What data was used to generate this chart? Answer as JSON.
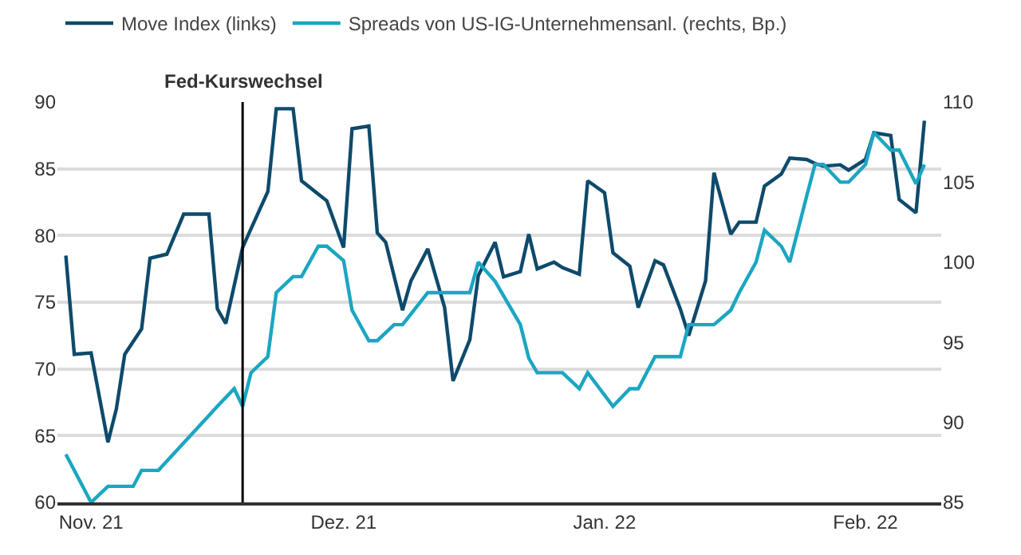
{
  "chart_data": {
    "type": "line",
    "series": [
      {
        "name": "Move Index (links)",
        "color": "#0e4a6b",
        "axis": "y",
        "x": [
          "2021-10-29",
          "2021-10-30",
          "2021-11-01",
          "2021-11-03",
          "2021-11-04",
          "2021-11-05",
          "2021-11-07",
          "2021-11-08",
          "2021-11-10",
          "2021-11-12",
          "2021-11-15",
          "2021-11-16",
          "2021-11-17",
          "2021-11-19",
          "2021-11-20",
          "2021-11-22",
          "2021-11-23",
          "2021-11-25",
          "2021-11-26",
          "2021-11-28",
          "2021-11-29",
          "2021-12-01",
          "2021-12-02",
          "2021-12-04",
          "2021-12-05",
          "2021-12-06",
          "2021-12-08",
          "2021-12-09",
          "2021-12-11",
          "2021-12-13",
          "2021-12-14",
          "2021-12-16",
          "2021-12-17",
          "2021-12-19",
          "2021-12-20",
          "2021-12-22",
          "2021-12-23",
          "2021-12-24",
          "2021-12-26",
          "2021-12-27",
          "2021-12-29",
          "2021-12-30",
          "2022-01-01",
          "2022-01-02",
          "2022-01-04",
          "2022-01-05",
          "2022-01-07",
          "2022-01-08",
          "2022-01-10",
          "2022-01-11",
          "2022-01-13",
          "2022-01-14",
          "2022-01-16",
          "2022-01-17",
          "2022-01-19",
          "2022-01-20",
          "2022-01-22",
          "2022-01-23",
          "2022-01-25",
          "2022-01-26",
          "2022-01-27",
          "2022-01-29",
          "2022-01-30",
          "2022-02-01",
          "2022-02-02",
          "2022-02-04",
          "2022-02-05",
          "2022-02-07",
          "2022-02-08"
        ],
        "values": [
          78.5,
          71.1,
          71.2,
          64.5,
          67.0,
          71.1,
          73.0,
          78.3,
          78.6,
          81.6,
          81.6,
          74.5,
          73.4,
          79.1,
          80.5,
          83.3,
          89.5,
          89.5,
          84.1,
          83.1,
          82.6,
          79.1,
          88.0,
          88.2,
          80.2,
          79.5,
          74.4,
          76.6,
          79.0,
          74.6,
          69.1,
          72.2,
          77.0,
          79.5,
          76.9,
          77.3,
          80.1,
          77.5,
          78.0,
          77.6,
          77.1,
          84.1,
          83.2,
          78.7,
          77.7,
          74.6,
          78.1,
          77.8,
          74.5,
          72.5,
          76.6,
          84.7,
          80.1,
          81.0,
          81.0,
          83.7,
          84.6,
          85.8,
          85.7,
          85.4,
          85.2,
          85.3,
          84.9,
          85.7,
          87.7,
          87.5,
          82.7,
          81.7,
          88.6
        ]
      },
      {
        "name": "Spreads von US-IG-Unternehmensanl. (rechts, Bp.)",
        "color": "#1ba6c2",
        "axis": "y2",
        "x": [
          "2021-10-29",
          "2021-10-30",
          "2021-11-01",
          "2021-11-03",
          "2021-11-06",
          "2021-11-07",
          "2021-11-09",
          "2021-11-16",
          "2021-11-18",
          "2021-11-19",
          "2021-11-20",
          "2021-11-22",
          "2021-11-23",
          "2021-11-25",
          "2021-11-26",
          "2021-11-28",
          "2021-11-29",
          "2021-12-01",
          "2021-12-02",
          "2021-12-04",
          "2021-12-05",
          "2021-12-07",
          "2021-12-08",
          "2021-12-11",
          "2021-12-16",
          "2021-12-17",
          "2021-12-19",
          "2021-12-22",
          "2021-12-23",
          "2021-12-24",
          "2021-12-27",
          "2021-12-29",
          "2021-12-30",
          "2022-01-02",
          "2022-01-04",
          "2022-01-05",
          "2022-01-07",
          "2022-01-10",
          "2022-01-11",
          "2022-01-14",
          "2022-01-16",
          "2022-01-17",
          "2022-01-19",
          "2022-01-20",
          "2022-01-22",
          "2022-01-23",
          "2022-01-25",
          "2022-01-26",
          "2022-01-27",
          "2022-01-29",
          "2022-01-30",
          "2022-02-01",
          "2022-02-02",
          "2022-02-04",
          "2022-02-05",
          "2022-02-07",
          "2022-02-08"
        ],
        "values": [
          88.0,
          87.0,
          85.0,
          86.0,
          86.0,
          87.0,
          87.0,
          91.0,
          92.1,
          91.0,
          93.1,
          94.1,
          98.1,
          99.1,
          99.1,
          101.0,
          101.0,
          100.1,
          97.0,
          95.1,
          95.1,
          96.1,
          96.1,
          98.1,
          98.1,
          100.0,
          98.8,
          96.1,
          94.0,
          93.1,
          93.1,
          92.1,
          93.1,
          91.0,
          92.1,
          92.1,
          94.1,
          94.1,
          96.1,
          96.1,
          97.0,
          98.1,
          100.0,
          102.0,
          101.0,
          100.0,
          104.1,
          106.1,
          106.1,
          105.0,
          105.0,
          106.1,
          108.1,
          107.0,
          107.0,
          104.9,
          106.1
        ]
      }
    ],
    "xlim": [
      "2021-10-28",
      "2022-02-10"
    ],
    "xticks": [
      {
        "value": "2021-11-01",
        "label": "Nov. 21"
      },
      {
        "value": "2021-12-01",
        "label": "Dez. 21"
      },
      {
        "value": "2022-01-01",
        "label": "Jan. 22"
      },
      {
        "value": "2022-02-01",
        "label": "Feb. 22"
      }
    ],
    "ylim": [
      60,
      90
    ],
    "yticks": [
      60,
      65,
      70,
      75,
      80,
      85,
      90
    ],
    "y2lim": [
      85,
      110
    ],
    "y2ticks": [
      85,
      90,
      95,
      100,
      105,
      110
    ],
    "ref_lines": [
      {
        "axis": "x",
        "value": "2021-11-19",
        "label": "Fed-Kurswechsel",
        "color": "#000000"
      }
    ],
    "grid": "y",
    "legend": "top left",
    "marker": "none",
    "line_style": "solid"
  }
}
